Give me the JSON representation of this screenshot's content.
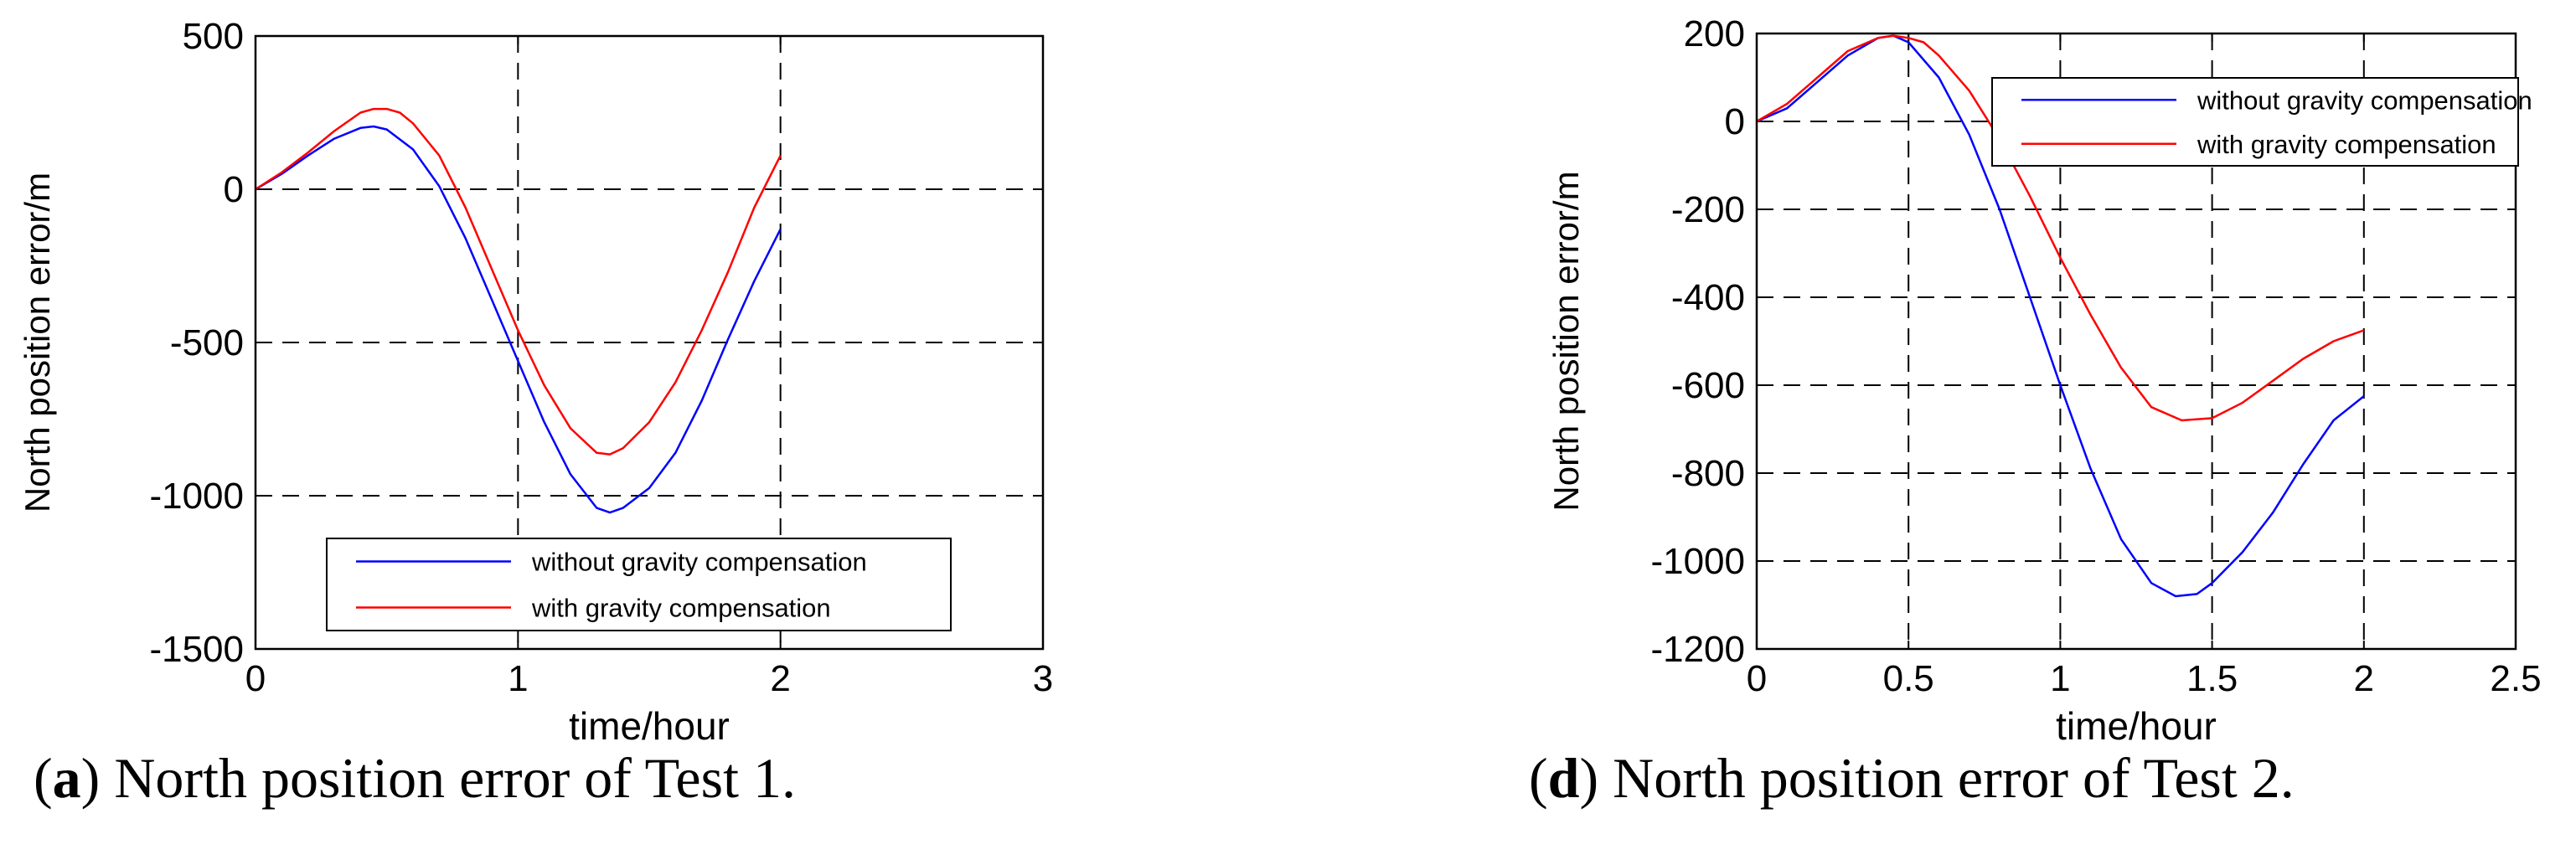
{
  "chart_data": [
    {
      "type": "line",
      "panel": "a",
      "caption_label": "a",
      "caption_text": "North position error of Test 1.",
      "xlabel": "time/hour",
      "ylabel": "North position error/m",
      "xlim": [
        0,
        3
      ],
      "ylim": [
        -1500,
        500
      ],
      "xticks": [
        0,
        1,
        2,
        3
      ],
      "yticks": [
        500,
        0,
        -500,
        -1000,
        -1500
      ],
      "grid": true,
      "legend_position": "lower-center",
      "series": [
        {
          "name": "without gravity compensation",
          "color": "#0000ff",
          "x": [
            0,
            0.1,
            0.2,
            0.3,
            0.4,
            0.45,
            0.5,
            0.6,
            0.7,
            0.8,
            0.9,
            1.0,
            1.1,
            1.2,
            1.3,
            1.35,
            1.4,
            1.5,
            1.6,
            1.7,
            1.8,
            1.9,
            2.0
          ],
          "y": [
            0,
            50,
            110,
            165,
            200,
            205,
            195,
            130,
            10,
            -160,
            -360,
            -560,
            -760,
            -930,
            -1040,
            -1055,
            -1040,
            -975,
            -860,
            -690,
            -490,
            -300,
            -130
          ]
        },
        {
          "name": "with gravity compensation",
          "color": "#ff0000",
          "x": [
            0,
            0.1,
            0.2,
            0.3,
            0.4,
            0.45,
            0.5,
            0.55,
            0.6,
            0.7,
            0.8,
            0.9,
            1.0,
            1.1,
            1.2,
            1.3,
            1.35,
            1.4,
            1.5,
            1.6,
            1.7,
            1.8,
            1.9,
            2.0
          ],
          "y": [
            0,
            55,
            120,
            190,
            250,
            262,
            262,
            250,
            215,
            110,
            -60,
            -260,
            -460,
            -640,
            -780,
            -860,
            -865,
            -845,
            -760,
            -630,
            -460,
            -270,
            -60,
            110
          ]
        }
      ]
    },
    {
      "type": "line",
      "panel": "d",
      "caption_label": "d",
      "caption_text": "North position error of Test 2.",
      "xlabel": "time/hour",
      "ylabel": "North position error/m",
      "xlim": [
        0,
        2.5
      ],
      "ylim": [
        -1200,
        200
      ],
      "xticks": [
        0,
        0.5,
        1,
        1.5,
        2,
        2.5
      ],
      "yticks": [
        200,
        0,
        -200,
        -400,
        -600,
        -800,
        -1000,
        -1200
      ],
      "grid": true,
      "legend_position": "top-right",
      "series": [
        {
          "name": "without gravity compensation",
          "color": "#0000ff",
          "x": [
            0,
            0.1,
            0.2,
            0.3,
            0.4,
            0.45,
            0.5,
            0.6,
            0.7,
            0.8,
            0.9,
            1.0,
            1.1,
            1.2,
            1.3,
            1.38,
            1.45,
            1.5,
            1.6,
            1.7,
            1.8,
            1.9,
            2.0
          ],
          "y": [
            0,
            30,
            90,
            150,
            190,
            195,
            180,
            100,
            -30,
            -200,
            -400,
            -600,
            -790,
            -950,
            -1050,
            -1080,
            -1075,
            -1050,
            -980,
            -890,
            -780,
            -680,
            -625
          ]
        },
        {
          "name": "with gravity compensation",
          "color": "#ff0000",
          "x": [
            0,
            0.1,
            0.2,
            0.3,
            0.4,
            0.45,
            0.5,
            0.55,
            0.6,
            0.7,
            0.8,
            0.9,
            1.0,
            1.1,
            1.2,
            1.3,
            1.4,
            1.5,
            1.6,
            1.7,
            1.8,
            1.9,
            2.0
          ],
          "y": [
            0,
            40,
            100,
            160,
            190,
            195,
            190,
            180,
            150,
            70,
            -40,
            -170,
            -310,
            -440,
            -560,
            -650,
            -680,
            -675,
            -640,
            -590,
            -540,
            -500,
            -475
          ]
        }
      ]
    }
  ]
}
